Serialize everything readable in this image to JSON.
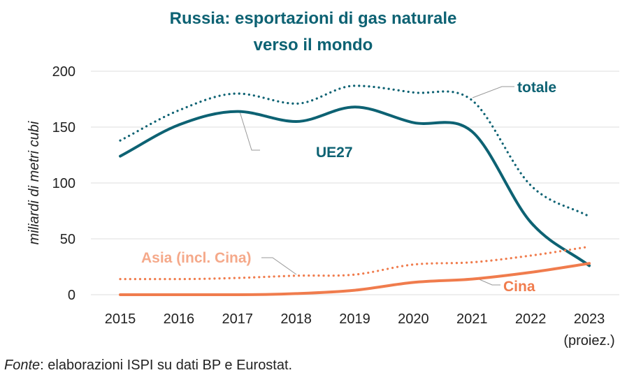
{
  "chart_data": {
    "type": "line",
    "title_line1": "Russia: esportazioni di gas naturale",
    "title_line2": "verso il mondo",
    "ylabel": "miliardi di metri cubi",
    "xlabel": "",
    "x": [
      "2015",
      "2016",
      "2017",
      "2018",
      "2019",
      "2020",
      "2021",
      "2022",
      "2023"
    ],
    "x_sublabel": "(proiez.)",
    "ylim": [
      0,
      200
    ],
    "yticks": [
      0,
      50,
      100,
      150,
      200
    ],
    "grid": true,
    "series": [
      {
        "name": "totale",
        "style": "dotted",
        "color": "#0d6273",
        "values": [
          138,
          165,
          180,
          171,
          187,
          181,
          174,
          98,
          70
        ]
      },
      {
        "name": "UE27",
        "style": "solid",
        "color": "#0d6273",
        "values": [
          124,
          152,
          164,
          155,
          168,
          154,
          146,
          65,
          26
        ]
      },
      {
        "name": "Asia (incl. Cina)",
        "style": "dotted",
        "color": "#f07c4d",
        "label_color": "#f5a98a",
        "values": [
          14,
          14,
          15,
          17,
          18,
          27,
          29,
          35,
          43
        ]
      },
      {
        "name": "Cina",
        "style": "solid",
        "color": "#f07c4d",
        "values": [
          0,
          0,
          0,
          1,
          4,
          11,
          14,
          20,
          28
        ]
      }
    ]
  },
  "source": {
    "prefix": "Fonte",
    "text": ": elaborazioni ISPI su dati BP e Eurostat."
  },
  "colors": {
    "title": "#0d6273",
    "grid": "#dddddd",
    "leader": "#999999"
  }
}
